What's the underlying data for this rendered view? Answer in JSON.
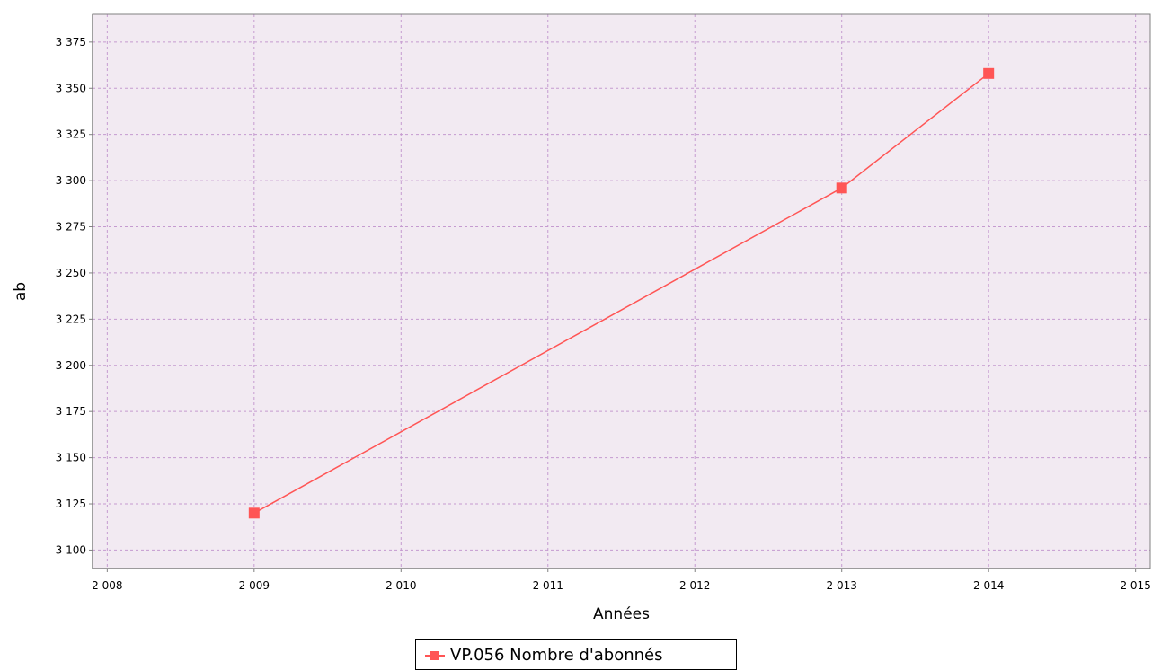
{
  "chart_data": {
    "type": "line",
    "xlabel": "Années",
    "ylabel": "ab",
    "xlim": [
      2007.9,
      2015.1
    ],
    "ylim": [
      3090,
      3390
    ],
    "x_ticks": [
      2008,
      2009,
      2010,
      2011,
      2012,
      2013,
      2014,
      2015
    ],
    "x_tick_labels": [
      "2 008",
      "2 009",
      "2 010",
      "2 011",
      "2 012",
      "2 013",
      "2 014",
      "2 015"
    ],
    "y_ticks": [
      3100,
      3125,
      3150,
      3175,
      3200,
      3225,
      3250,
      3275,
      3300,
      3325,
      3350,
      3375
    ],
    "y_tick_labels": [
      "3 100",
      "3 125",
      "3 150",
      "3 175",
      "3 200",
      "3 225",
      "3 250",
      "3 275",
      "3 300",
      "3 325",
      "3 350",
      "3 375"
    ],
    "grid": true,
    "legend_position": "bottom-center",
    "series": [
      {
        "name": "VP.056 Nombre d'abonnés",
        "color": "#ff5555",
        "marker": "square",
        "x": [
          2009,
          2013,
          2014
        ],
        "y": [
          3120,
          3296,
          3358
        ]
      }
    ]
  },
  "colors": {
    "plot_background": "#f2eaf2",
    "grid": "#c59bd0",
    "axis": "#808080"
  },
  "legend": {
    "label": "VP.056 Nombre d'abonnés"
  }
}
